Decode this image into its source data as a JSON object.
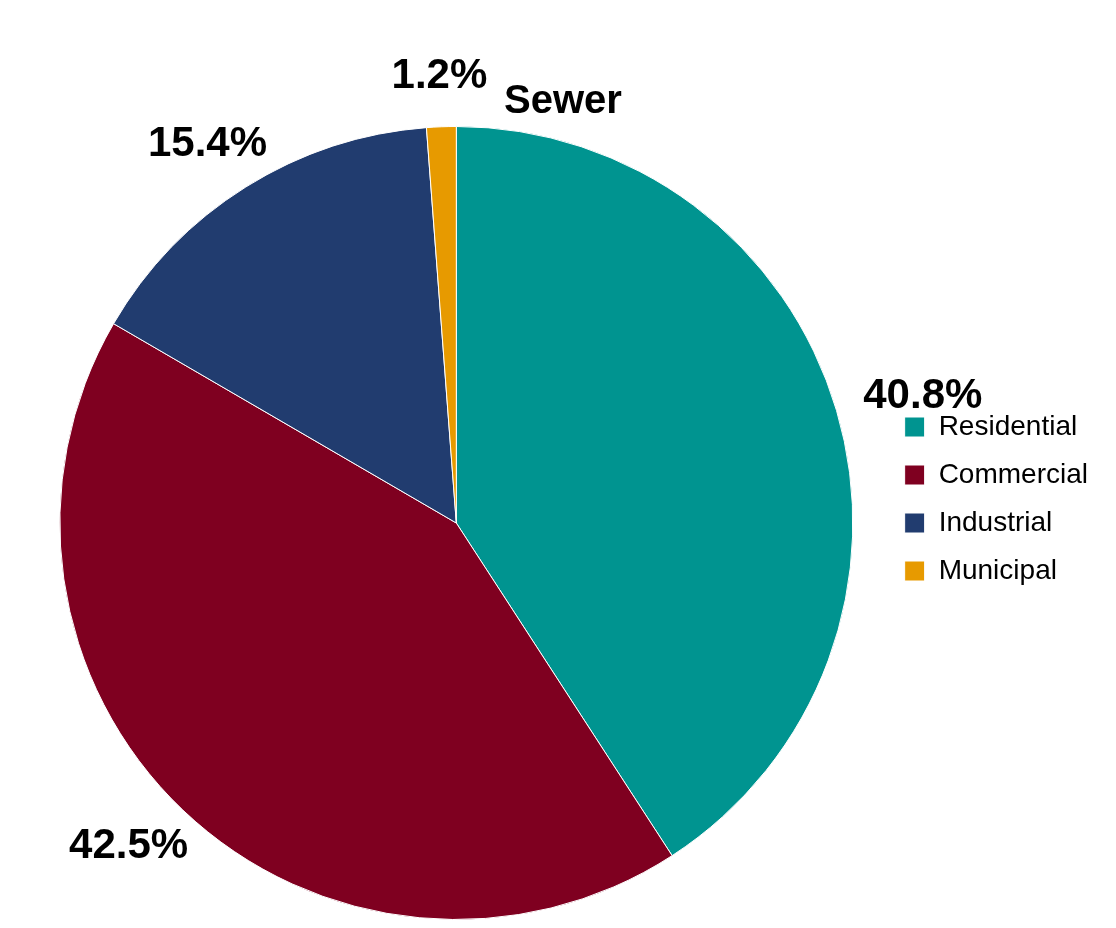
{
  "chart_data": {
    "type": "pie",
    "title": "Sewer",
    "categories": [
      "Residential",
      "Commercial",
      "Industrial",
      "Municipal"
    ],
    "values": [
      40.8,
      42.5,
      15.4,
      1.2
    ],
    "colors": [
      "#009490",
      "#7f0020",
      "#213c6f",
      "#e79a00"
    ],
    "value_labels": [
      "40.8%",
      "42.5%",
      "15.4%",
      "1.2%"
    ],
    "legend": "right"
  }
}
